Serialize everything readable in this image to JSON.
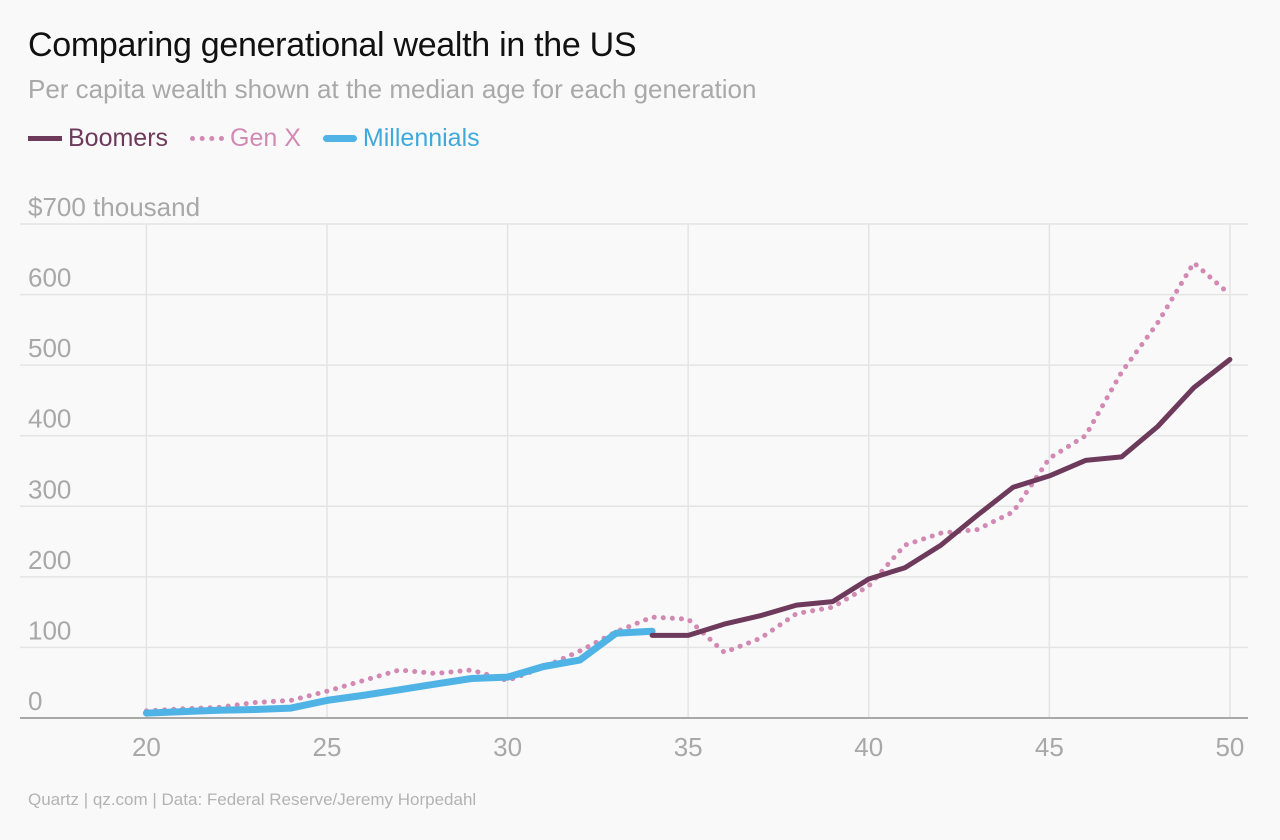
{
  "title": "Comparing generational wealth in the US",
  "subtitle": "Per capita wealth shown at the median age for each generation",
  "footer": "Quartz | qz.com | Data: Federal Reserve/Jeremy Horpedahl",
  "colors": {
    "boomers": "#6d3a5b",
    "genx": "#d28ab4",
    "millennials": "#4fb3e6",
    "grid": "#e4e4e4",
    "axis": "#a8a8a8",
    "tick_text": "#a8a8a8"
  },
  "chart_data": {
    "type": "line",
    "title": "Comparing generational wealth in the US",
    "subtitle": "Per capita wealth shown at the median age for each generation",
    "xlim": [
      16.5,
      50.5
    ],
    "ylim": [
      0,
      700
    ],
    "x_ticks": [
      20,
      25,
      30,
      35,
      40,
      45,
      50
    ],
    "y_ticks": [
      0,
      100,
      200,
      300,
      400,
      500,
      600,
      700
    ],
    "y_tick_labels": [
      "0",
      "100",
      "200",
      "300",
      "400",
      "500",
      "600",
      "$700 thousand"
    ],
    "grid": true,
    "legend_position": "top-left",
    "series": [
      {
        "name": "Boomers",
        "style": "solid",
        "x": [
          34,
          35,
          36,
          37,
          38,
          39,
          40,
          41,
          42,
          43,
          44,
          45,
          46,
          47,
          48,
          49,
          50
        ],
        "values": [
          117,
          117,
          133,
          145,
          160,
          165,
          197,
          213,
          245,
          287,
          327,
          343,
          365,
          370,
          413,
          468,
          508
        ]
      },
      {
        "name": "Gen X",
        "style": "dotted",
        "x": [
          20,
          21,
          22,
          23,
          24,
          25,
          26,
          27,
          28,
          29,
          30,
          31,
          32,
          33,
          34,
          35,
          36,
          37,
          38,
          39,
          40,
          41,
          42,
          43,
          44,
          45,
          46,
          47,
          48,
          49,
          50
        ],
        "values": [
          10,
          13,
          15,
          22,
          25,
          38,
          53,
          68,
          63,
          68,
          53,
          72,
          95,
          122,
          143,
          140,
          93,
          113,
          148,
          157,
          187,
          245,
          262,
          267,
          292,
          368,
          400,
          490,
          560,
          645,
          600
        ]
      },
      {
        "name": "Millennials",
        "style": "solid-thick",
        "x": [
          20,
          21,
          22,
          23,
          24,
          25,
          26,
          27,
          28,
          29,
          30,
          31,
          32,
          33,
          34
        ],
        "values": [
          7,
          9,
          11,
          12,
          14,
          25,
          32,
          40,
          48,
          56,
          58,
          73,
          82,
          120,
          123
        ]
      }
    ]
  }
}
